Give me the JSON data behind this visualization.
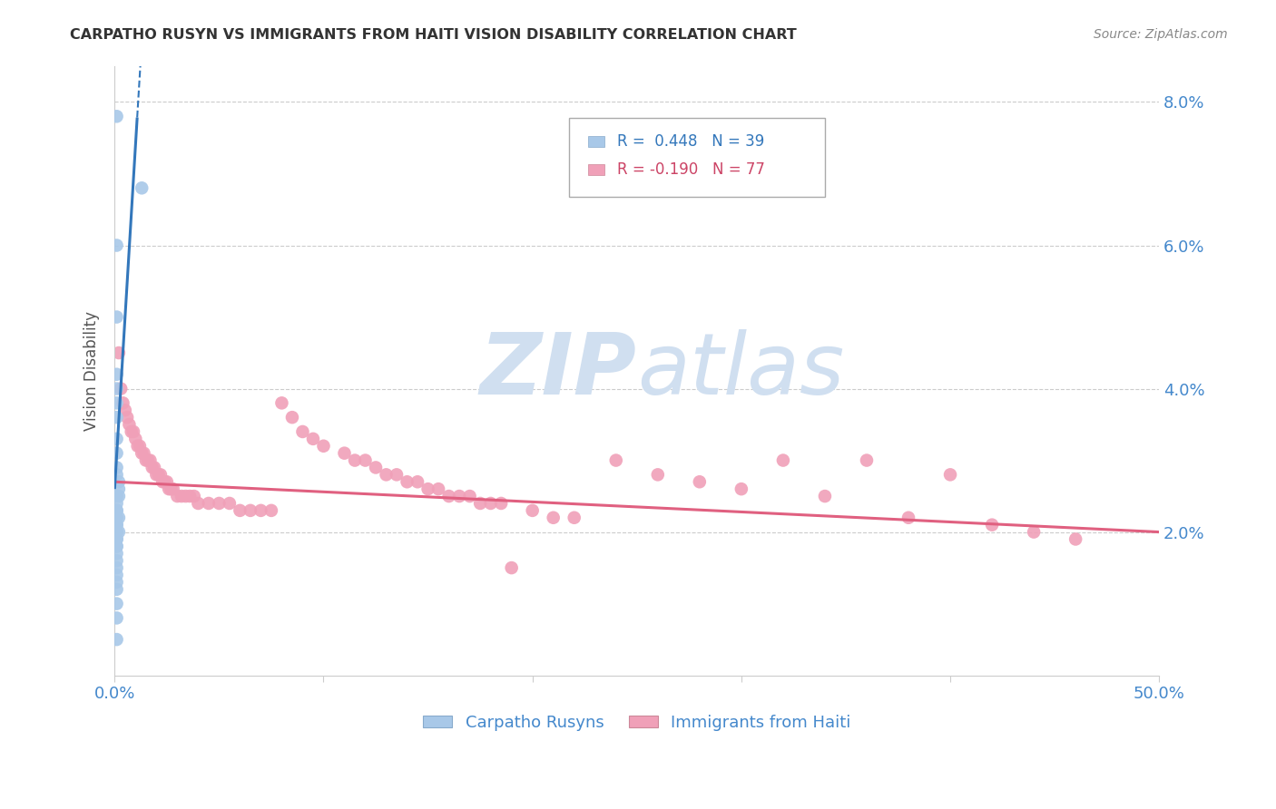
{
  "title": "CARPATHO RUSYN VS IMMIGRANTS FROM HAITI VISION DISABILITY CORRELATION CHART",
  "source": "Source: ZipAtlas.com",
  "ylabel": "Vision Disability",
  "legend_blue_r": "R =  0.448",
  "legend_blue_n": "N = 39",
  "legend_pink_r": "R = -0.190",
  "legend_pink_n": "N = 77",
  "legend_blue_label": "Carpatho Rusyns",
  "legend_pink_label": "Immigrants from Haiti",
  "x_min": 0.0,
  "x_max": 0.5,
  "y_min": 0.0,
  "y_max": 0.085,
  "y_ticks": [
    0.02,
    0.04,
    0.06,
    0.08
  ],
  "y_tick_labels": [
    "2.0%",
    "4.0%",
    "6.0%",
    "8.0%"
  ],
  "x_ticks": [
    0.0,
    0.1,
    0.2,
    0.3,
    0.4,
    0.5
  ],
  "x_tick_labels": [
    "0.0%",
    "",
    "",
    "",
    "",
    "50.0%"
  ],
  "blue_color": "#a8c8e8",
  "pink_color": "#f0a0b8",
  "blue_line_color": "#3377bb",
  "pink_line_color": "#e06080",
  "watermark_color": "#d0dff0",
  "background_color": "#ffffff",
  "grid_color": "#cccccc"
}
